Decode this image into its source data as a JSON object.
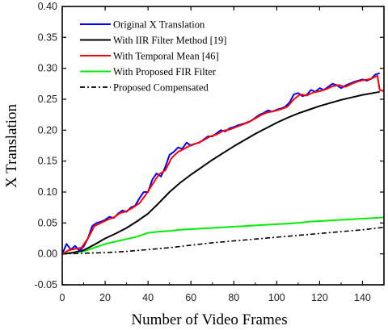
{
  "chart_data": {
    "type": "line",
    "xlabel": "Number of Video Frames",
    "ylabel": "X Translation",
    "xlim": [
      0,
      150
    ],
    "ylim": [
      -0.05,
      0.4
    ],
    "xticks": [
      0,
      20,
      40,
      60,
      80,
      100,
      120,
      140
    ],
    "yticks": [
      -0.05,
      0.0,
      0.05,
      0.1,
      0.15,
      0.2,
      0.25,
      0.3,
      0.35,
      0.4
    ],
    "ytick_labels": [
      "-0.05",
      "0.00",
      "0.05",
      "0.10",
      "0.15",
      "0.20",
      "0.25",
      "0.30",
      "0.35",
      "0.40"
    ],
    "grid": false,
    "legend_position": "top-left",
    "series": [
      {
        "name": "Original  X Translation",
        "color": "#0000ff",
        "dash": "solid",
        "x": [
          0,
          2,
          4,
          6,
          8,
          10,
          12,
          14,
          16,
          18,
          20,
          22,
          24,
          26,
          28,
          30,
          32,
          34,
          36,
          38,
          40,
          42,
          44,
          46,
          48,
          50,
          52,
          54,
          56,
          58,
          60,
          62,
          64,
          66,
          68,
          70,
          72,
          74,
          76,
          78,
          80,
          82,
          84,
          86,
          88,
          90,
          92,
          94,
          96,
          98,
          100,
          102,
          104,
          106,
          108,
          110,
          112,
          114,
          116,
          118,
          120,
          122,
          124,
          126,
          128,
          130,
          132,
          134,
          136,
          138,
          140,
          142,
          144,
          146,
          148
        ],
        "y": [
          0.0,
          0.016,
          0.007,
          0.013,
          0.005,
          0.012,
          0.025,
          0.045,
          0.05,
          0.052,
          0.055,
          0.06,
          0.058,
          0.065,
          0.07,
          0.068,
          0.075,
          0.078,
          0.09,
          0.1,
          0.1,
          0.12,
          0.13,
          0.125,
          0.14,
          0.16,
          0.165,
          0.172,
          0.17,
          0.18,
          0.175,
          0.178,
          0.18,
          0.185,
          0.19,
          0.19,
          0.195,
          0.2,
          0.198,
          0.203,
          0.205,
          0.208,
          0.21,
          0.212,
          0.215,
          0.22,
          0.225,
          0.228,
          0.232,
          0.23,
          0.233,
          0.235,
          0.238,
          0.245,
          0.258,
          0.26,
          0.255,
          0.257,
          0.265,
          0.262,
          0.268,
          0.265,
          0.27,
          0.275,
          0.273,
          0.268,
          0.272,
          0.275,
          0.278,
          0.28,
          0.282,
          0.28,
          0.283,
          0.29,
          0.292
        ]
      },
      {
        "name": "With  IIR Filter Method  [19]",
        "color": "#000000",
        "dash": "solid",
        "x": [
          0,
          5,
          10,
          15,
          20,
          25,
          30,
          35,
          40,
          45,
          50,
          55,
          60,
          65,
          70,
          75,
          80,
          85,
          90,
          95,
          100,
          105,
          110,
          115,
          120,
          125,
          130,
          135,
          140,
          145,
          148
        ],
        "y": [
          0.0,
          0.002,
          0.006,
          0.015,
          0.025,
          0.033,
          0.042,
          0.053,
          0.065,
          0.082,
          0.1,
          0.115,
          0.128,
          0.14,
          0.152,
          0.163,
          0.174,
          0.184,
          0.194,
          0.203,
          0.212,
          0.22,
          0.227,
          0.233,
          0.239,
          0.244,
          0.249,
          0.253,
          0.257,
          0.26,
          0.262
        ]
      },
      {
        "name": "With  Temporal Mean  [46]",
        "color": "#ff0000",
        "dash": "solid",
        "x": [
          0,
          3,
          6,
          9,
          12,
          15,
          18,
          21,
          24,
          27,
          30,
          33,
          36,
          39,
          42,
          45,
          48,
          51,
          54,
          57,
          60,
          63,
          66,
          69,
          72,
          75,
          78,
          81,
          84,
          87,
          90,
          93,
          96,
          99,
          102,
          105,
          108,
          111,
          114,
          117,
          120,
          123,
          126,
          129,
          132,
          135,
          138,
          141,
          144,
          147,
          148,
          150
        ],
        "y": [
          0.0,
          0.006,
          0.008,
          0.01,
          0.025,
          0.045,
          0.05,
          0.055,
          0.059,
          0.066,
          0.069,
          0.075,
          0.082,
          0.096,
          0.112,
          0.128,
          0.135,
          0.155,
          0.165,
          0.17,
          0.176,
          0.179,
          0.184,
          0.19,
          0.193,
          0.199,
          0.201,
          0.205,
          0.209,
          0.213,
          0.219,
          0.225,
          0.229,
          0.231,
          0.234,
          0.238,
          0.25,
          0.258,
          0.256,
          0.261,
          0.263,
          0.266,
          0.271,
          0.273,
          0.27,
          0.275,
          0.279,
          0.281,
          0.283,
          0.288,
          0.265,
          0.263
        ]
      },
      {
        "name": "With  Proposed FIR Filter",
        "color": "#00ee00",
        "dash": "solid",
        "x": [
          0,
          5,
          10,
          15,
          20,
          25,
          30,
          35,
          40,
          45,
          50,
          55,
          60,
          65,
          70,
          75,
          80,
          85,
          90,
          95,
          100,
          105,
          110,
          115,
          120,
          125,
          130,
          135,
          140,
          145,
          150
        ],
        "y": [
          0.0,
          0.002,
          0.004,
          0.01,
          0.016,
          0.02,
          0.024,
          0.028,
          0.034,
          0.036,
          0.037,
          0.039,
          0.04,
          0.041,
          0.042,
          0.043,
          0.044,
          0.045,
          0.046,
          0.047,
          0.048,
          0.049,
          0.05,
          0.052,
          0.053,
          0.054,
          0.055,
          0.056,
          0.057,
          0.058,
          0.059
        ]
      },
      {
        "name": "Proposed Compensated",
        "color": "#000000",
        "dash": "dashdot",
        "x": [
          0,
          10,
          20,
          30,
          40,
          50,
          60,
          70,
          80,
          90,
          100,
          110,
          120,
          130,
          140,
          150
        ],
        "y": [
          0.0,
          0.001,
          0.002,
          0.004,
          0.007,
          0.01,
          0.014,
          0.018,
          0.021,
          0.024,
          0.027,
          0.03,
          0.033,
          0.036,
          0.039,
          0.043
        ]
      }
    ]
  }
}
